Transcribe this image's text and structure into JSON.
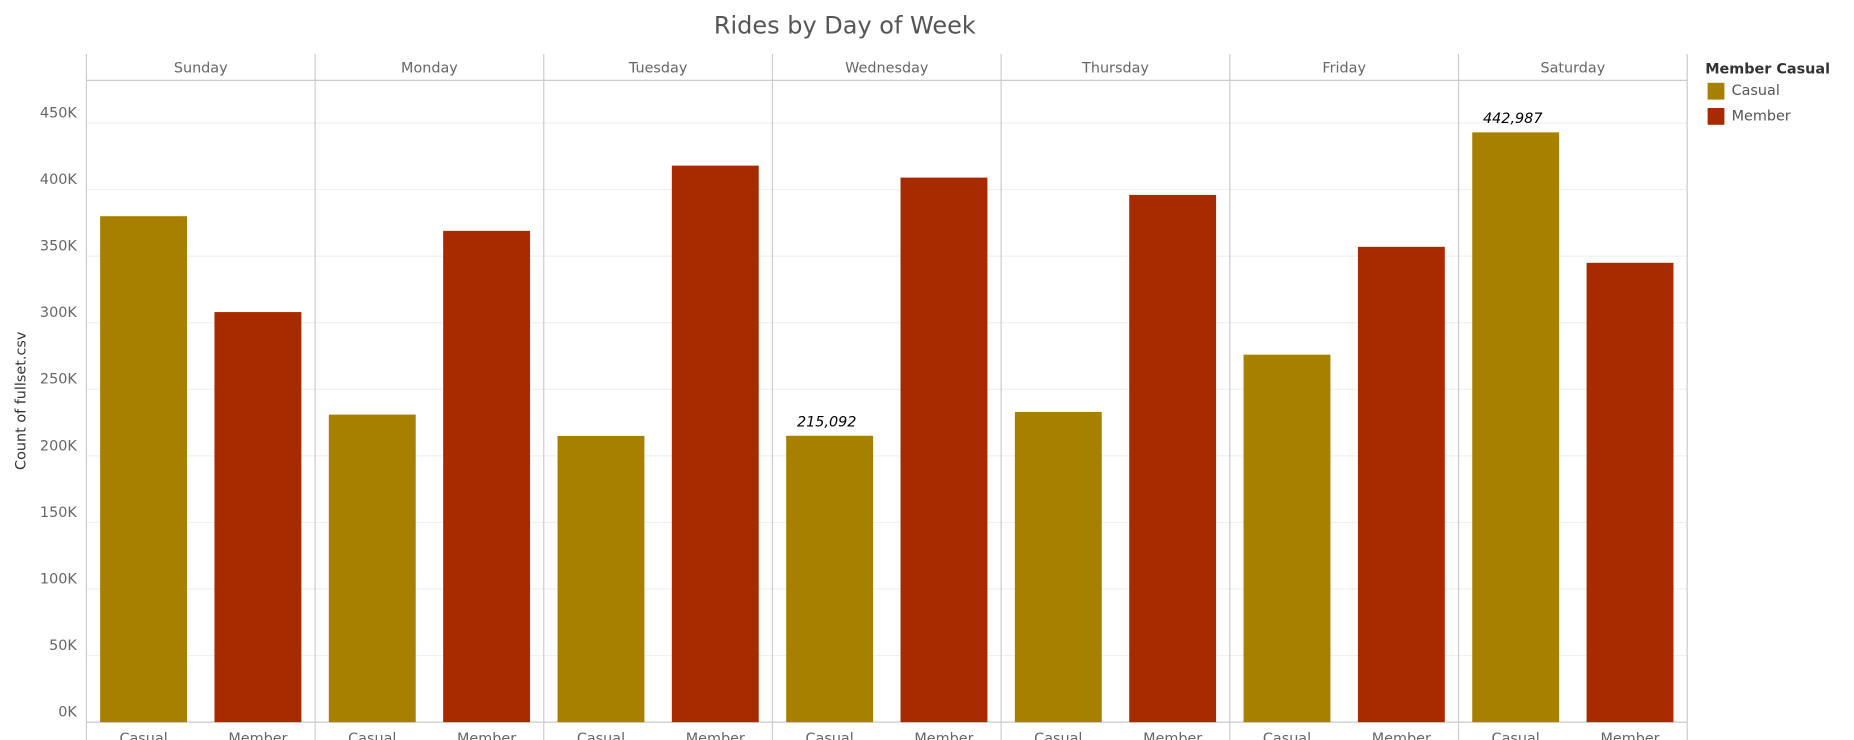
{
  "chart_data": {
    "type": "bar",
    "title": "Rides by Day of Week",
    "y_label": "Count of fullset.csv",
    "legend_title": "Member Casual",
    "categories": [
      "Sunday",
      "Monday",
      "Tuesday",
      "Wednesday",
      "Thursday",
      "Friday",
      "Saturday"
    ],
    "series": [
      {
        "name": "Casual",
        "color": "#a88000",
        "values": [
          380000,
          231000,
          215000,
          215092,
          233000,
          276000,
          442987
        ],
        "value_labels": [
          null,
          null,
          null,
          "215,092",
          null,
          null,
          "442,987"
        ]
      },
      {
        "name": "Member",
        "color": "#a82b00",
        "values": [
          308000,
          369000,
          418000,
          409000,
          396000,
          357000,
          345000
        ]
      }
    ],
    "ylim": [
      0,
      482000
    ],
    "yticks": [
      {
        "value": 0,
        "label": "0K"
      },
      {
        "value": 50000,
        "label": "50K"
      },
      {
        "value": 100000,
        "label": "100K"
      },
      {
        "value": 150000,
        "label": "150K"
      },
      {
        "value": 200000,
        "label": "200K"
      },
      {
        "value": 250000,
        "label": "250K"
      },
      {
        "value": 300000,
        "label": "300K"
      },
      {
        "value": 350000,
        "label": "350K"
      },
      {
        "value": 400000,
        "label": "400K"
      },
      {
        "value": 450000,
        "label": "450K"
      }
    ],
    "grid": true,
    "legend": "right"
  }
}
